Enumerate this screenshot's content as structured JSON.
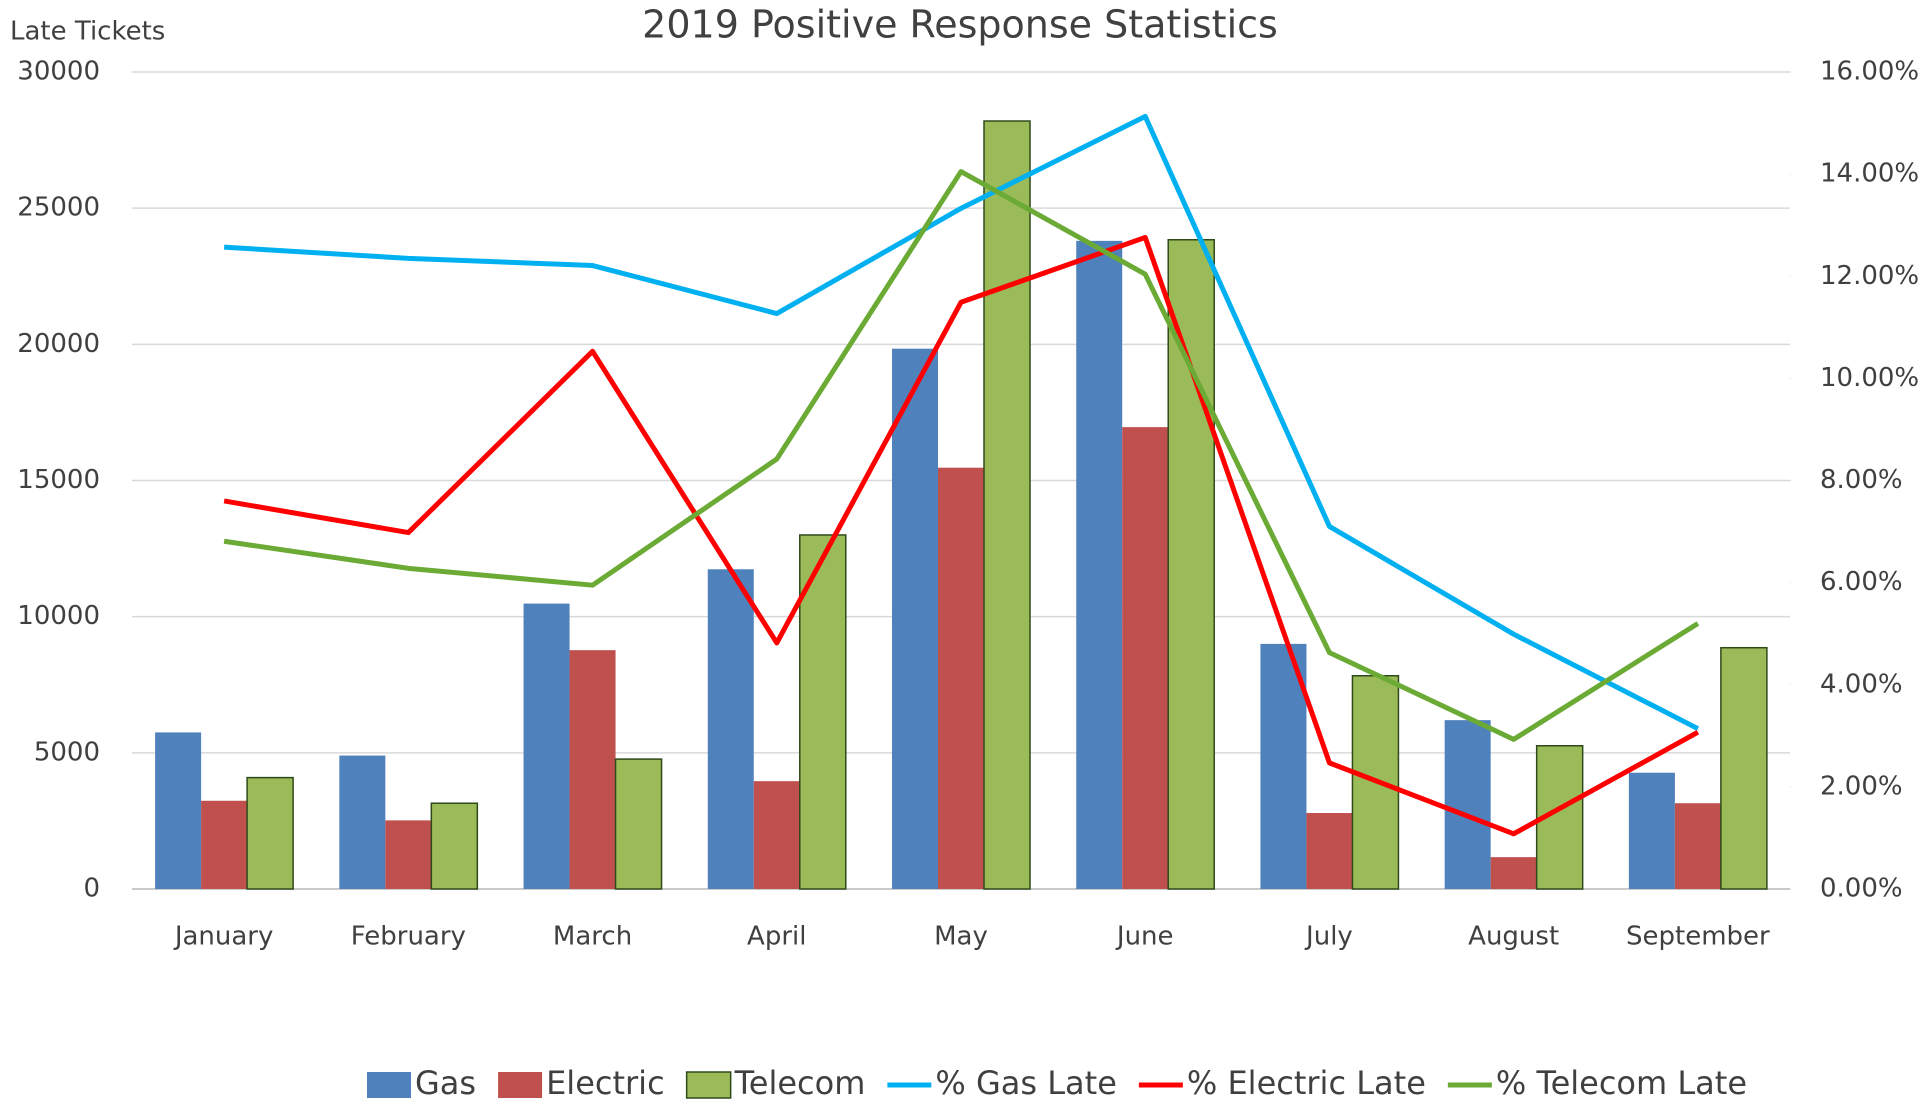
{
  "chart_data": {
    "type": "bar",
    "title": "2019 Positive Response Statistics",
    "y_label": "Late Tickets",
    "categories": [
      "January",
      "February",
      "March",
      "April",
      "May",
      "June",
      "July",
      "August",
      "September"
    ],
    "series": [
      {
        "name": "Gas",
        "color": "#4f81bd",
        "type": "bar",
        "values": [
          5750,
          4900,
          10480,
          11740,
          19840,
          23800,
          9000,
          6200,
          4270
        ]
      },
      {
        "name": "Electric",
        "color": "#c0504d",
        "type": "bar",
        "values": [
          3240,
          2520,
          8770,
          3960,
          15470,
          16960,
          2790,
          1170,
          3150
        ]
      },
      {
        "name": "Telecom",
        "color": "#9bbb59",
        "type": "bar",
        "values": [
          4090,
          3150,
          4770,
          13000,
          28200,
          23840,
          7830,
          5260,
          8860
        ]
      },
      {
        "name": "% Gas Late",
        "color": "#00b0f0",
        "type": "line",
        "axis": "y2",
        "values": [
          12.57,
          12.35,
          12.21,
          11.27,
          13.33,
          15.13,
          7.1,
          4.99,
          3.14
        ]
      },
      {
        "name": "% Electric Late",
        "color": "#ff0000",
        "type": "line",
        "axis": "y2",
        "values": [
          7.6,
          6.98,
          10.53,
          4.82,
          11.49,
          12.76,
          2.47,
          1.08,
          3.07
        ]
      },
      {
        "name": "% Telecom Late",
        "color": "#6aaa35",
        "type": "line",
        "axis": "y2",
        "values": [
          6.81,
          6.28,
          5.95,
          8.42,
          14.05,
          12.04,
          4.63,
          2.93,
          5.2
        ]
      }
    ],
    "ylim": [
      0,
      30000
    ],
    "yticks": [
      0,
      5000,
      10000,
      15000,
      20000,
      25000,
      30000
    ],
    "y2lim": [
      0,
      16
    ],
    "y2ticks": [
      {
        "value": 0,
        "label": "0.00%"
      },
      {
        "value": 2,
        "label": "2.00%"
      },
      {
        "value": 4,
        "label": "4.00%"
      },
      {
        "value": 6,
        "label": "6.00%"
      },
      {
        "value": 8,
        "label": "8.00%"
      },
      {
        "value": 10,
        "label": "10.00%"
      },
      {
        "value": 12,
        "label": "12.00%"
      },
      {
        "value": 14,
        "label": "14.00%"
      },
      {
        "value": 16,
        "label": "16.00%"
      }
    ],
    "grid": true,
    "legend": "bottom"
  }
}
